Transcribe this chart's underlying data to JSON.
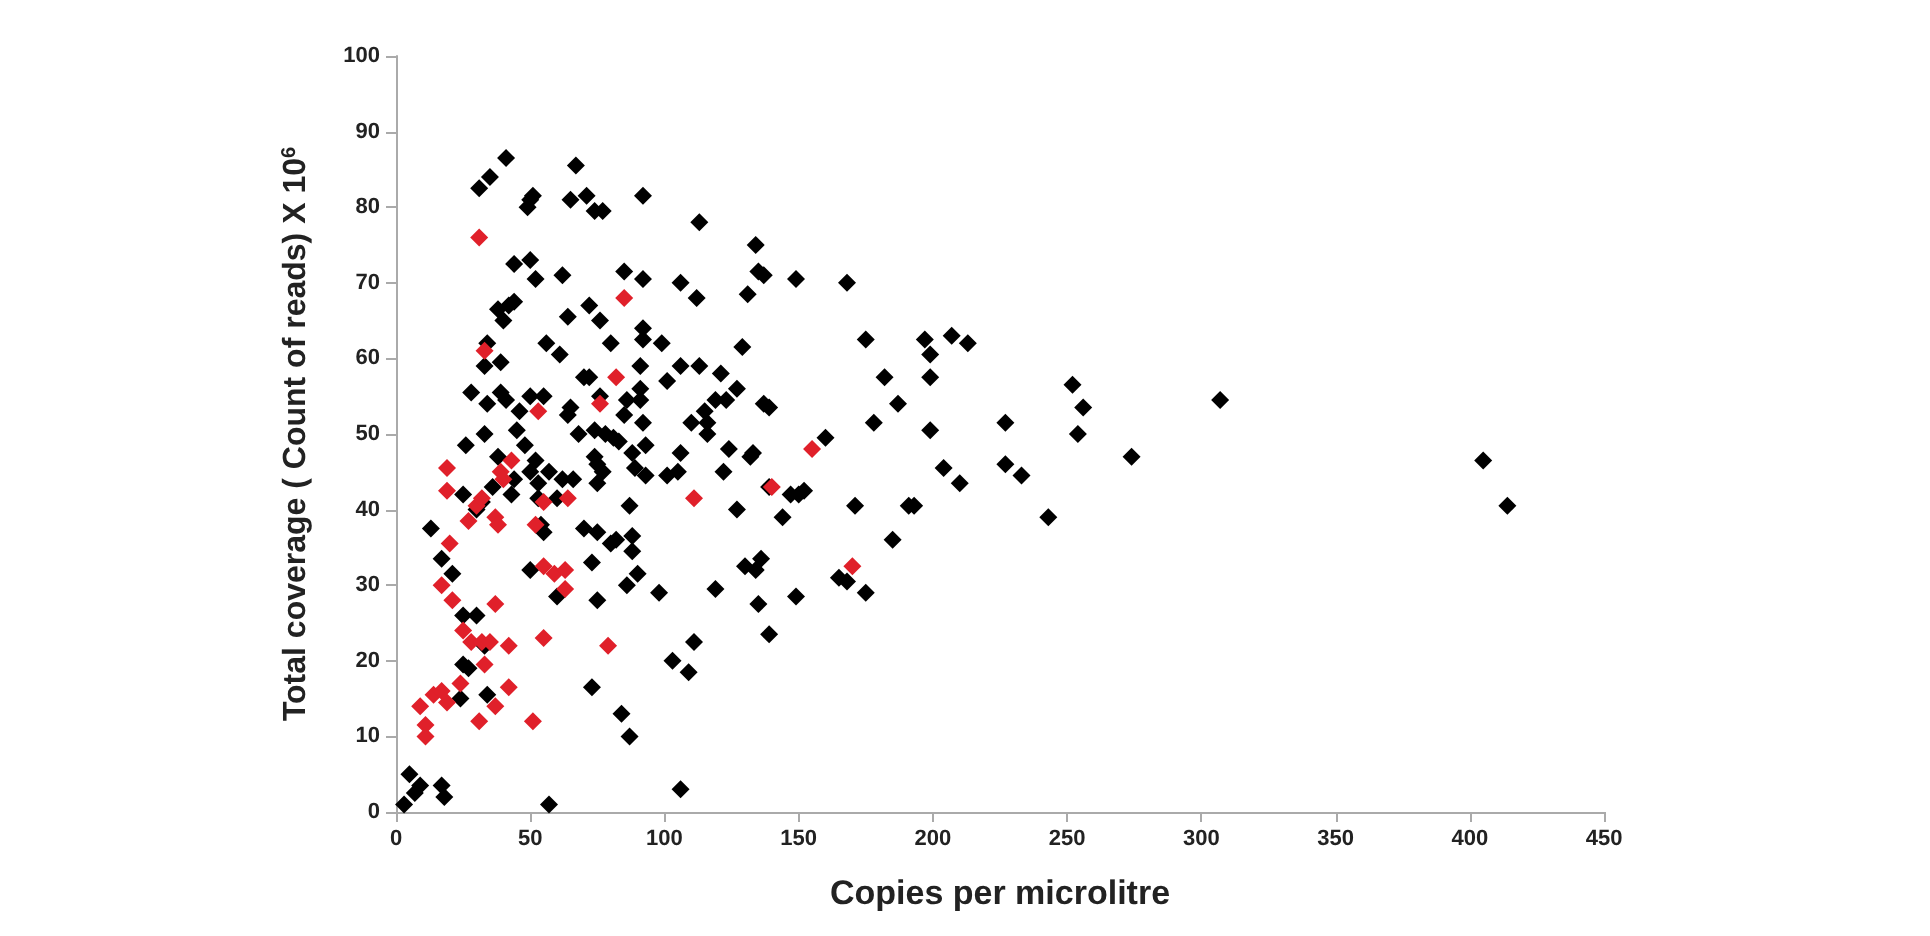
{
  "chart_data": {
    "type": "scatter",
    "xlabel": "Copies per microlitre",
    "ylabel": "Total coverage ( Count of reads) X 10$^{6}$",
    "xlim": [
      0,
      450
    ],
    "xticks": [
      0,
      50,
      100,
      150,
      200,
      250,
      300,
      350,
      400,
      450
    ],
    "ylim": [
      0,
      100
    ],
    "yticks": [
      0,
      10,
      20,
      30,
      40,
      50,
      60,
      70,
      80,
      90,
      100
    ],
    "grid": false,
    "marker": "diamond",
    "series": [
      {
        "color": "#000000",
        "x": [
          5,
          3,
          7,
          9,
          17,
          18,
          57,
          106,
          13,
          17,
          21,
          25,
          30,
          25,
          27,
          24,
          33,
          34,
          25,
          26,
          28,
          31,
          35,
          41,
          30,
          32,
          33,
          34,
          34,
          33,
          36,
          38,
          39,
          40,
          42,
          44,
          44,
          38,
          39,
          41,
          43,
          44,
          45,
          46,
          48,
          49,
          50,
          51,
          50,
          52,
          50,
          50,
          50,
          52,
          53,
          53,
          55,
          54,
          55,
          56,
          57,
          60,
          60,
          61,
          62,
          62,
          64,
          64,
          65,
          65,
          66,
          67,
          68,
          70,
          70,
          71,
          72,
          72,
          73,
          73,
          74,
          74,
          74,
          75,
          75,
          75,
          75,
          76,
          76,
          77,
          77,
          78,
          80,
          80,
          81,
          82,
          83,
          84,
          85,
          85,
          86,
          86,
          87,
          87,
          88,
          88,
          88,
          89,
          90,
          91,
          91,
          91,
          92,
          92,
          92,
          92,
          92,
          93,
          93,
          98,
          99,
          101,
          101,
          103,
          105,
          106,
          106,
          106,
          109,
          110,
          111,
          112,
          113,
          113,
          115,
          116,
          116,
          119,
          119,
          121,
          122,
          123,
          124,
          127,
          127,
          129,
          130,
          131,
          132,
          133,
          134,
          134,
          135,
          135,
          136,
          137,
          137,
          139,
          139,
          139,
          144,
          149,
          149,
          147,
          150,
          152,
          160,
          165,
          168,
          168,
          171,
          175,
          175,
          178,
          182,
          185,
          187,
          191,
          193,
          197,
          199,
          199,
          199,
          204,
          207,
          210,
          213,
          227,
          227,
          233,
          243,
          252,
          254,
          256,
          274,
          307,
          405,
          414
        ],
        "values": [
          5,
          1,
          2.5,
          3.5,
          3.5,
          2,
          1,
          3,
          37.5,
          33.5,
          31.5,
          26,
          26,
          19.5,
          19,
          15,
          22,
          15.5,
          42,
          48.5,
          55.5,
          82.5,
          84,
          86.5,
          40,
          41,
          59,
          62,
          54,
          50,
          43,
          66.5,
          59.5,
          65,
          67,
          67.5,
          72.5,
          47,
          55.5,
          54.5,
          42,
          44,
          50.5,
          53,
          48.5,
          80,
          81,
          81.5,
          73,
          70.5,
          55,
          45,
          32,
          46.5,
          43.5,
          41.5,
          55,
          38,
          37,
          62,
          45,
          28.5,
          41.5,
          60.5,
          44,
          71,
          65.5,
          52.5,
          81,
          53.5,
          44,
          85.5,
          50,
          57.5,
          37.5,
          81.5,
          57.5,
          67,
          33,
          16.5,
          50.5,
          47,
          79.5,
          37,
          46,
          43.5,
          28,
          65,
          55,
          79.5,
          45,
          50,
          62,
          35.5,
          49.5,
          36,
          49,
          13,
          71.5,
          52.5,
          54.5,
          30,
          10,
          40.5,
          47.5,
          34.5,
          36.5,
          45.5,
          31.5,
          56,
          54.5,
          59,
          81.5,
          70.5,
          62.5,
          64,
          51.5,
          48.5,
          44.5,
          29,
          62,
          57,
          44.5,
          20,
          45,
          59,
          70,
          47.5,
          18.5,
          51.5,
          22.5,
          68,
          78,
          59,
          53,
          51.5,
          50,
          29.5,
          54.5,
          58,
          45,
          54.5,
          48,
          40,
          56,
          61.5,
          32.5,
          68.5,
          47,
          47.5,
          75,
          32,
          71.5,
          27.5,
          33.5,
          71,
          54,
          53.5,
          23.5,
          43,
          39,
          70.5,
          28.5,
          42,
          42,
          42.5,
          49.5,
          31,
          70,
          30.5,
          40.5,
          29,
          62.5,
          51.5,
          57.5,
          36,
          54,
          40.5,
          40.5,
          62.5,
          60.5,
          50.5,
          57.5,
          45.5,
          63,
          43.5,
          62,
          46,
          51.5,
          44.5,
          39,
          56.5,
          50,
          53.5,
          47,
          54.5,
          46.5,
          40.5
        ]
      },
      {
        "color": "#e0202a",
        "x": [
          9,
          11,
          11,
          14,
          17,
          17,
          19,
          19,
          19,
          20,
          21,
          24,
          25,
          27,
          28,
          30,
          31,
          31,
          32,
          32,
          33,
          33,
          35,
          37,
          37,
          37,
          38,
          39,
          40,
          42,
          42,
          43,
          51,
          52,
          53,
          55,
          55,
          55,
          59,
          63,
          63,
          64,
          76,
          79,
          82,
          85,
          111,
          140,
          155,
          170
        ],
        "values": [
          14,
          11.5,
          10,
          15.5,
          30,
          16,
          42.5,
          45.5,
          14.5,
          35.5,
          28,
          17,
          24,
          38.5,
          22.5,
          40.5,
          12,
          76,
          22.5,
          41.5,
          61,
          19.5,
          22.5,
          39,
          27.5,
          14,
          38,
          45,
          44,
          16.5,
          22,
          46.5,
          12,
          38,
          53,
          41,
          32.5,
          23,
          31.5,
          32,
          29.5,
          41.5,
          54,
          22,
          57.5,
          68,
          41.5,
          43,
          48,
          32.5
        ]
      }
    ]
  }
}
